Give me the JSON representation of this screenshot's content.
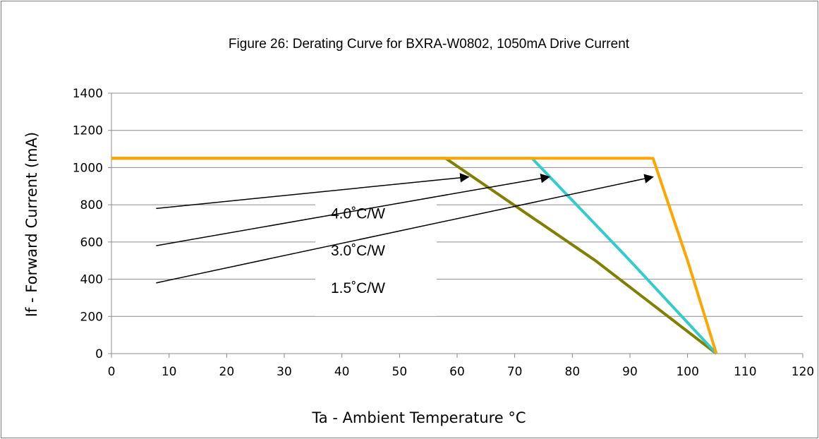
{
  "chart_data": {
    "type": "line",
    "title": "Figure 26:  Derating Curve for BXRA-W0802, 1050mA Drive Current",
    "xlabel": "Ta - Ambient Temperature °C",
    "ylabel": "If - Forward Current (mA)",
    "xlim": [
      0,
      120
    ],
    "ylim": [
      0,
      1400
    ],
    "xticks": [
      0,
      10,
      20,
      30,
      40,
      50,
      60,
      70,
      80,
      90,
      100,
      110,
      120
    ],
    "yticks": [
      0,
      200,
      400,
      600,
      800,
      1000,
      1200,
      1400
    ],
    "grid": "horizontal",
    "legend": "none",
    "series": [
      {
        "name": "4.0˚C/W",
        "color": "#808000",
        "points": [
          [
            0,
            1050
          ],
          [
            58,
            1050
          ],
          [
            84,
            500
          ],
          [
            105,
            0
          ]
        ]
      },
      {
        "name": "3.0˚C/W",
        "color": "#33cccc",
        "points": [
          [
            0,
            1050
          ],
          [
            73,
            1050
          ],
          [
            90,
            500
          ],
          [
            105,
            0
          ]
        ]
      },
      {
        "name": "1.5˚C/W",
        "color": "#ffa500",
        "points": [
          [
            0,
            1050
          ],
          [
            94,
            1050
          ],
          [
            100,
            500
          ],
          [
            105,
            0
          ]
        ]
      }
    ],
    "annotations": [
      {
        "text": "4.0˚C/W",
        "arrow_from": [
          8,
          780
        ],
        "arrow_to": [
          62,
          950
        ]
      },
      {
        "text": "3.0˚C/W",
        "arrow_from": [
          8,
          580
        ],
        "arrow_to": [
          76,
          950
        ]
      },
      {
        "text": "1.5˚C/W",
        "arrow_from": [
          8,
          380
        ],
        "arrow_to": [
          94,
          950
        ]
      }
    ]
  }
}
